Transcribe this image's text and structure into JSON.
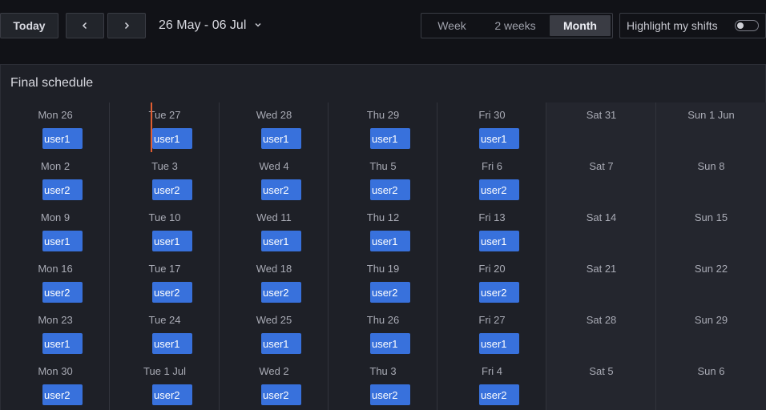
{
  "toolbar": {
    "today_label": "Today",
    "prev_icon": "chevron-left-icon",
    "next_icon": "chevron-right-icon",
    "range_label": "26 May - 06 Jul",
    "views": [
      {
        "label": "Week",
        "active": false
      },
      {
        "label": "2 weeks",
        "active": false
      },
      {
        "label": "Month",
        "active": true
      }
    ],
    "highlight_label": "Highlight my shifts",
    "highlight_on": false
  },
  "panel": {
    "title": "Final schedule"
  },
  "colors": {
    "shift": "#3871dc",
    "now_marker": "#e05d31",
    "weekend_bg": "#24262e"
  },
  "weeks": [
    {
      "days": [
        {
          "label": "Mon 26",
          "user": "user1"
        },
        {
          "label": "Tue 27",
          "user": "user1"
        },
        {
          "label": "Wed 28",
          "user": "user1"
        },
        {
          "label": "Thu 29",
          "user": "user1"
        },
        {
          "label": "Fri 30",
          "user": "user1"
        },
        {
          "label": "Sat 31",
          "user": ""
        },
        {
          "label": "Sun 1 Jun",
          "user": ""
        }
      ]
    },
    {
      "days": [
        {
          "label": "Mon 2",
          "user": "user2"
        },
        {
          "label": "Tue 3",
          "user": "user2"
        },
        {
          "label": "Wed 4",
          "user": "user2"
        },
        {
          "label": "Thu 5",
          "user": "user2"
        },
        {
          "label": "Fri 6",
          "user": "user2"
        },
        {
          "label": "Sat 7",
          "user": ""
        },
        {
          "label": "Sun 8",
          "user": ""
        }
      ]
    },
    {
      "days": [
        {
          "label": "Mon 9",
          "user": "user1"
        },
        {
          "label": "Tue 10",
          "user": "user1"
        },
        {
          "label": "Wed 11",
          "user": "user1"
        },
        {
          "label": "Thu 12",
          "user": "user1"
        },
        {
          "label": "Fri 13",
          "user": "user1"
        },
        {
          "label": "Sat 14",
          "user": ""
        },
        {
          "label": "Sun 15",
          "user": ""
        }
      ]
    },
    {
      "days": [
        {
          "label": "Mon 16",
          "user": "user2"
        },
        {
          "label": "Tue 17",
          "user": "user2"
        },
        {
          "label": "Wed 18",
          "user": "user2"
        },
        {
          "label": "Thu 19",
          "user": "user2"
        },
        {
          "label": "Fri 20",
          "user": "user2"
        },
        {
          "label": "Sat 21",
          "user": ""
        },
        {
          "label": "Sun 22",
          "user": ""
        }
      ]
    },
    {
      "days": [
        {
          "label": "Mon 23",
          "user": "user1"
        },
        {
          "label": "Tue 24",
          "user": "user1"
        },
        {
          "label": "Wed 25",
          "user": "user1"
        },
        {
          "label": "Thu 26",
          "user": "user1"
        },
        {
          "label": "Fri 27",
          "user": "user1"
        },
        {
          "label": "Sat 28",
          "user": ""
        },
        {
          "label": "Sun 29",
          "user": ""
        }
      ]
    },
    {
      "days": [
        {
          "label": "Mon 30",
          "user": "user2"
        },
        {
          "label": "Tue 1 Jul",
          "user": "user2"
        },
        {
          "label": "Wed 2",
          "user": "user2"
        },
        {
          "label": "Thu 3",
          "user": "user2"
        },
        {
          "label": "Fri 4",
          "user": "user2"
        },
        {
          "label": "Sat 5",
          "user": ""
        },
        {
          "label": "Sun 6",
          "user": ""
        }
      ]
    }
  ]
}
